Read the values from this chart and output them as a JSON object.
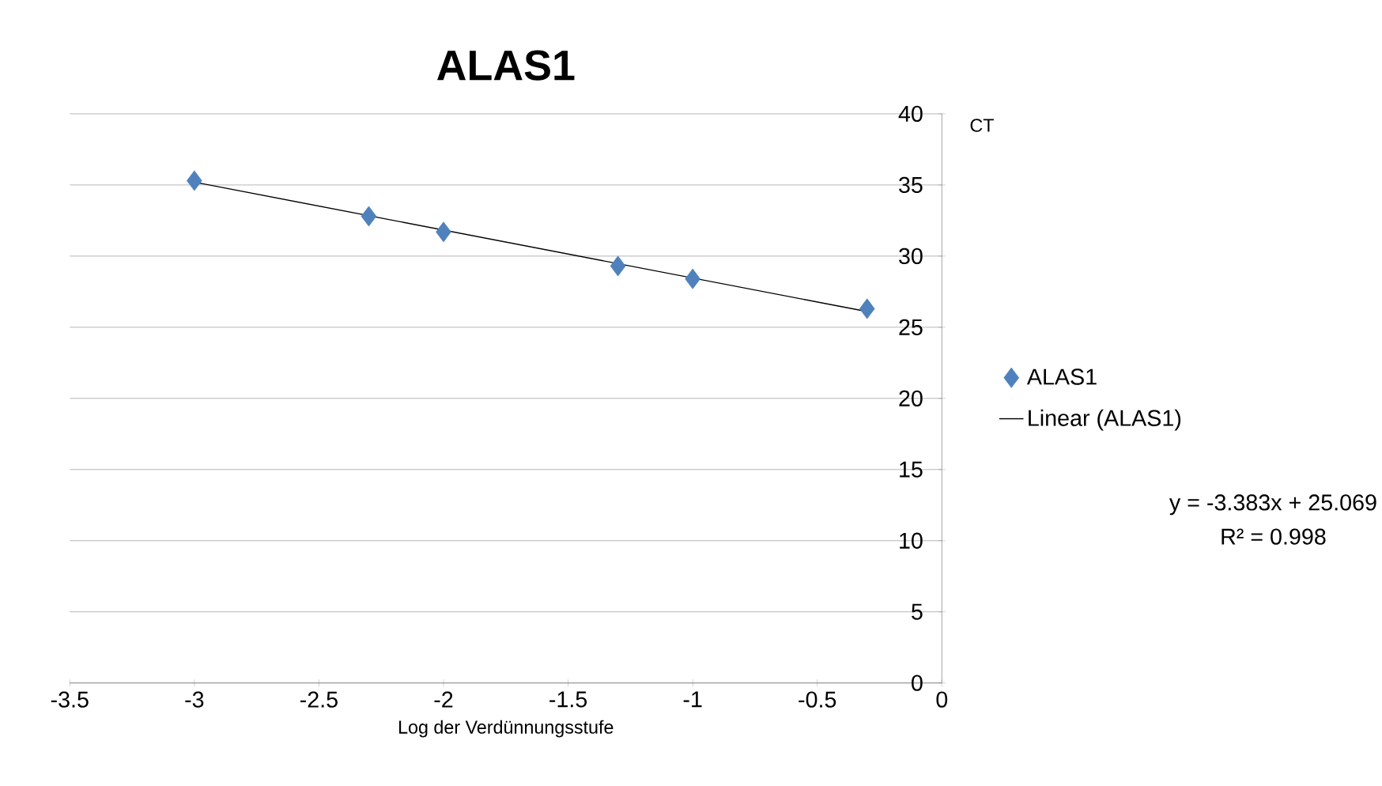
{
  "chart_data": {
    "type": "scatter",
    "title": "ALAS1",
    "xlabel": "Log der Verdünnungsstufe",
    "ylabel": "CT",
    "series": [
      {
        "name": "ALAS1",
        "color": "#4f81bd",
        "x": [
          -3,
          -2.3,
          -2,
          -1.3,
          -1,
          -0.3
        ],
        "values": [
          35.3,
          32.8,
          31.7,
          29.3,
          28.4,
          26.3
        ]
      },
      {
        "name": "Linear (ALAS1)",
        "type": "line",
        "marker": "none",
        "color": "#000000",
        "x": [
          -3,
          -0.3
        ],
        "values": [
          35.2,
          26.1
        ]
      }
    ],
    "annotations": [
      "y = -3.383x + 25.069",
      "R² = 0.998"
    ],
    "xlim": [
      -3.5,
      0
    ],
    "ylim": [
      0,
      40
    ],
    "xticks": [
      -3.5,
      -3,
      -2.5,
      -2,
      -1.5,
      -1,
      -0.5,
      0
    ],
    "yticks": [
      0,
      5,
      10,
      15,
      20,
      25,
      30,
      35,
      40
    ],
    "grid": "y",
    "legend": "right",
    "marker": "diamond"
  }
}
